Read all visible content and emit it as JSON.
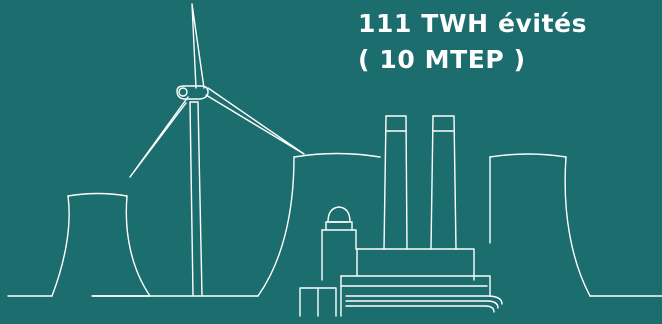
{
  "headline": {
    "line1": "111 TWH évités",
    "line2": "( 10 MTEP )"
  },
  "colors": {
    "background": "#1c6d6e",
    "stroke": "#ffffff",
    "text": "#ffffff"
  },
  "illustration": {
    "elements": [
      "cooling-tower-icon",
      "wind-turbine-icon",
      "factory-icon",
      "dome-icon",
      "chimney-icon"
    ]
  }
}
